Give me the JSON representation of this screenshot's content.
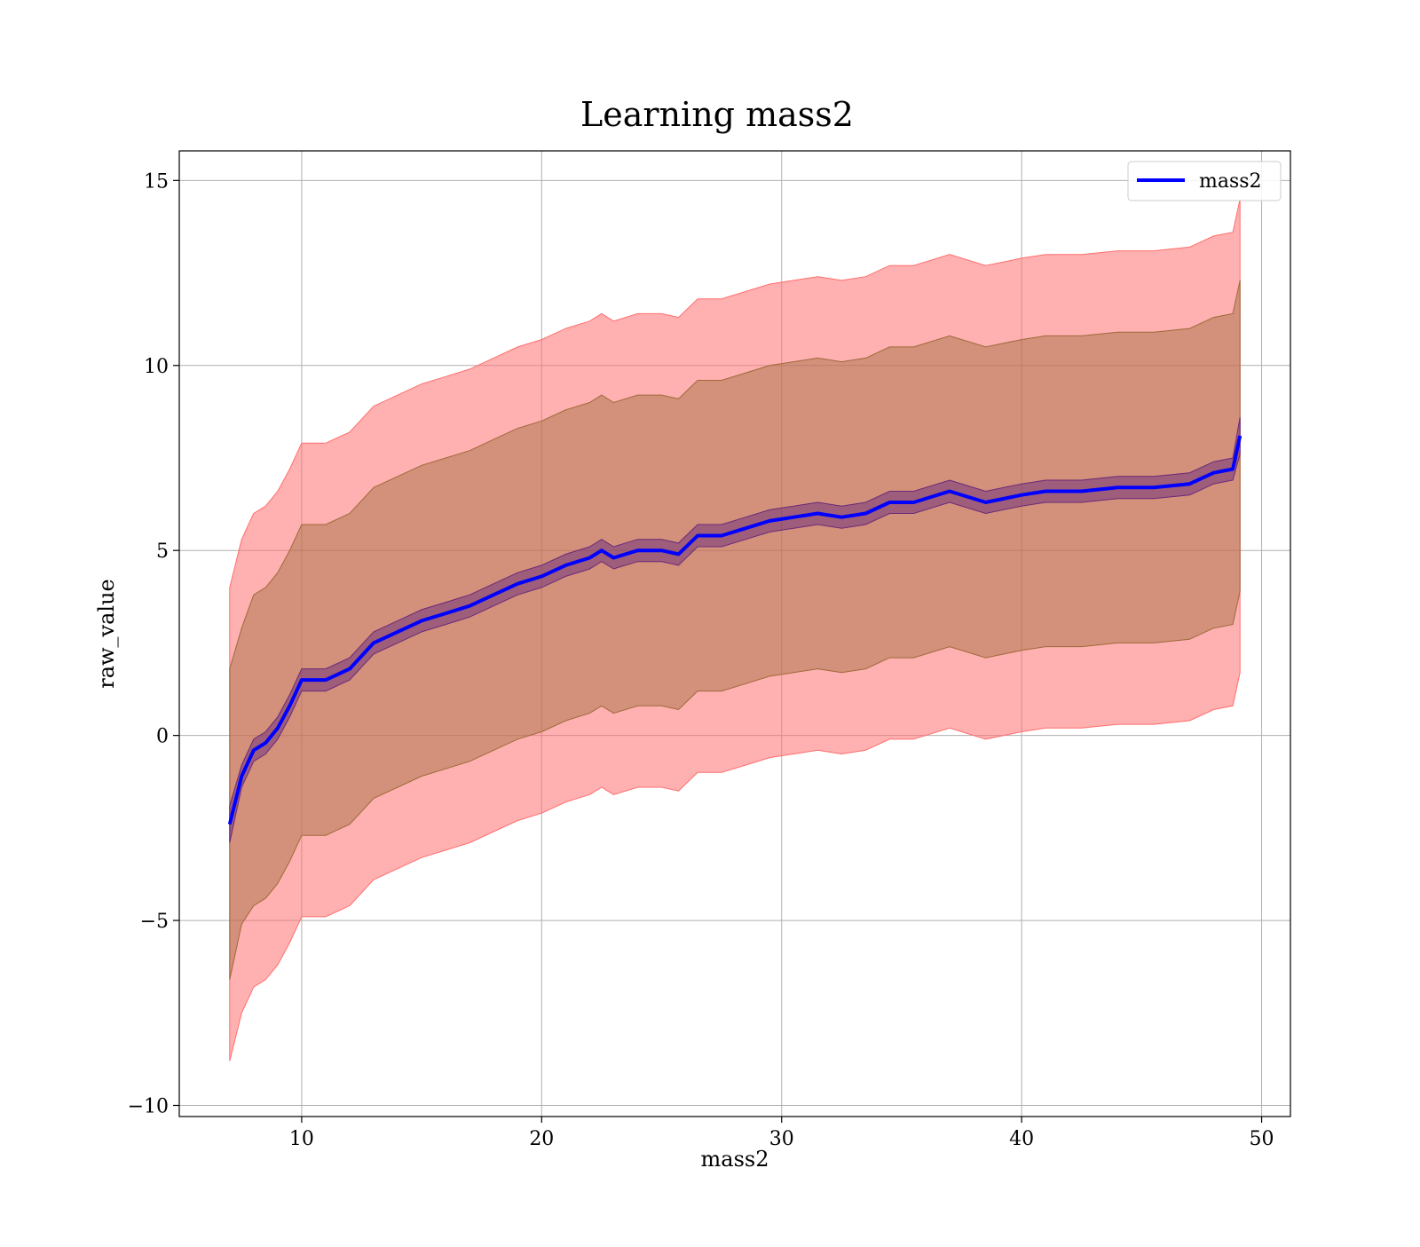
{
  "chart_data": {
    "type": "line",
    "title": "Learning mass2",
    "xlabel": "mass2",
    "ylabel": "raw_value",
    "xlim": [
      4.9,
      51.2
    ],
    "ylim": [
      -10.3,
      15.8
    ],
    "xticks": [
      10,
      20,
      30,
      40,
      50
    ],
    "yticks": [
      -10,
      -5,
      0,
      5,
      10,
      15
    ],
    "xtick_labels": [
      "10",
      "20",
      "30",
      "40",
      "50"
    ],
    "ytick_labels": [
      "−10",
      "−5",
      "0",
      "5",
      "10",
      "15"
    ],
    "grid": true,
    "legend": {
      "placement": "top-right",
      "entries": [
        "mass2"
      ]
    },
    "colors": {
      "line": "#0000ff",
      "outer_band": "#ff6f6f",
      "middle_band": "#9e6a3a",
      "inner_band": "#6a2a7a"
    },
    "series": [
      {
        "name": "mass2",
        "x": [
          7.0,
          7.5,
          8.0,
          8.5,
          9.0,
          9.5,
          10.0,
          11.0,
          12.0,
          13.0,
          14.0,
          15.0,
          16.0,
          17.0,
          18.0,
          19.0,
          20.0,
          21.0,
          22.0,
          22.5,
          23.0,
          24.0,
          25.0,
          25.7,
          26.5,
          27.5,
          28.5,
          29.5,
          30.5,
          31.5,
          32.5,
          33.5,
          34.5,
          35.5,
          37.0,
          38.5,
          40.0,
          41.0,
          42.5,
          44.0,
          45.5,
          47.0,
          48.0,
          48.8,
          49.1
        ],
        "y": [
          -2.4,
          -1.1,
          -0.4,
          -0.2,
          0.2,
          0.8,
          1.5,
          1.5,
          1.8,
          2.5,
          2.8,
          3.1,
          3.3,
          3.5,
          3.8,
          4.1,
          4.3,
          4.6,
          4.8,
          5.0,
          4.8,
          5.0,
          5.0,
          4.9,
          5.4,
          5.4,
          5.6,
          5.8,
          5.9,
          6.0,
          5.9,
          6.0,
          6.3,
          6.3,
          6.6,
          6.3,
          6.5,
          6.6,
          6.6,
          6.7,
          6.7,
          6.8,
          7.1,
          7.2,
          8.1
        ],
        "inner_band_halfwidth": [
          0.5,
          0.3,
          0.3,
          0.3,
          0.3,
          0.3,
          0.3,
          0.3,
          0.3,
          0.3,
          0.3,
          0.3,
          0.3,
          0.3,
          0.3,
          0.3,
          0.3,
          0.3,
          0.3,
          0.3,
          0.3,
          0.3,
          0.3,
          0.3,
          0.3,
          0.3,
          0.3,
          0.3,
          0.3,
          0.3,
          0.3,
          0.3,
          0.3,
          0.3,
          0.3,
          0.3,
          0.3,
          0.3,
          0.3,
          0.3,
          0.3,
          0.3,
          0.3,
          0.3,
          0.5
        ],
        "middle_band_halfwidth": [
          4.2,
          4.0,
          4.2,
          4.2,
          4.2,
          4.2,
          4.2,
          4.2,
          4.2,
          4.2,
          4.2,
          4.2,
          4.2,
          4.2,
          4.2,
          4.2,
          4.2,
          4.2,
          4.2,
          4.2,
          4.2,
          4.2,
          4.2,
          4.2,
          4.2,
          4.2,
          4.2,
          4.2,
          4.2,
          4.2,
          4.2,
          4.2,
          4.2,
          4.2,
          4.2,
          4.2,
          4.2,
          4.2,
          4.2,
          4.2,
          4.2,
          4.2,
          4.2,
          4.2,
          4.2
        ],
        "outer_band_halfwidth": [
          6.4,
          6.4,
          6.4,
          6.4,
          6.4,
          6.4,
          6.4,
          6.4,
          6.4,
          6.4,
          6.4,
          6.4,
          6.4,
          6.4,
          6.4,
          6.4,
          6.4,
          6.4,
          6.4,
          6.4,
          6.4,
          6.4,
          6.4,
          6.4,
          6.4,
          6.4,
          6.4,
          6.4,
          6.4,
          6.4,
          6.4,
          6.4,
          6.4,
          6.4,
          6.4,
          6.4,
          6.4,
          6.4,
          6.4,
          6.4,
          6.4,
          6.4,
          6.4,
          6.4,
          6.4
        ]
      }
    ]
  }
}
